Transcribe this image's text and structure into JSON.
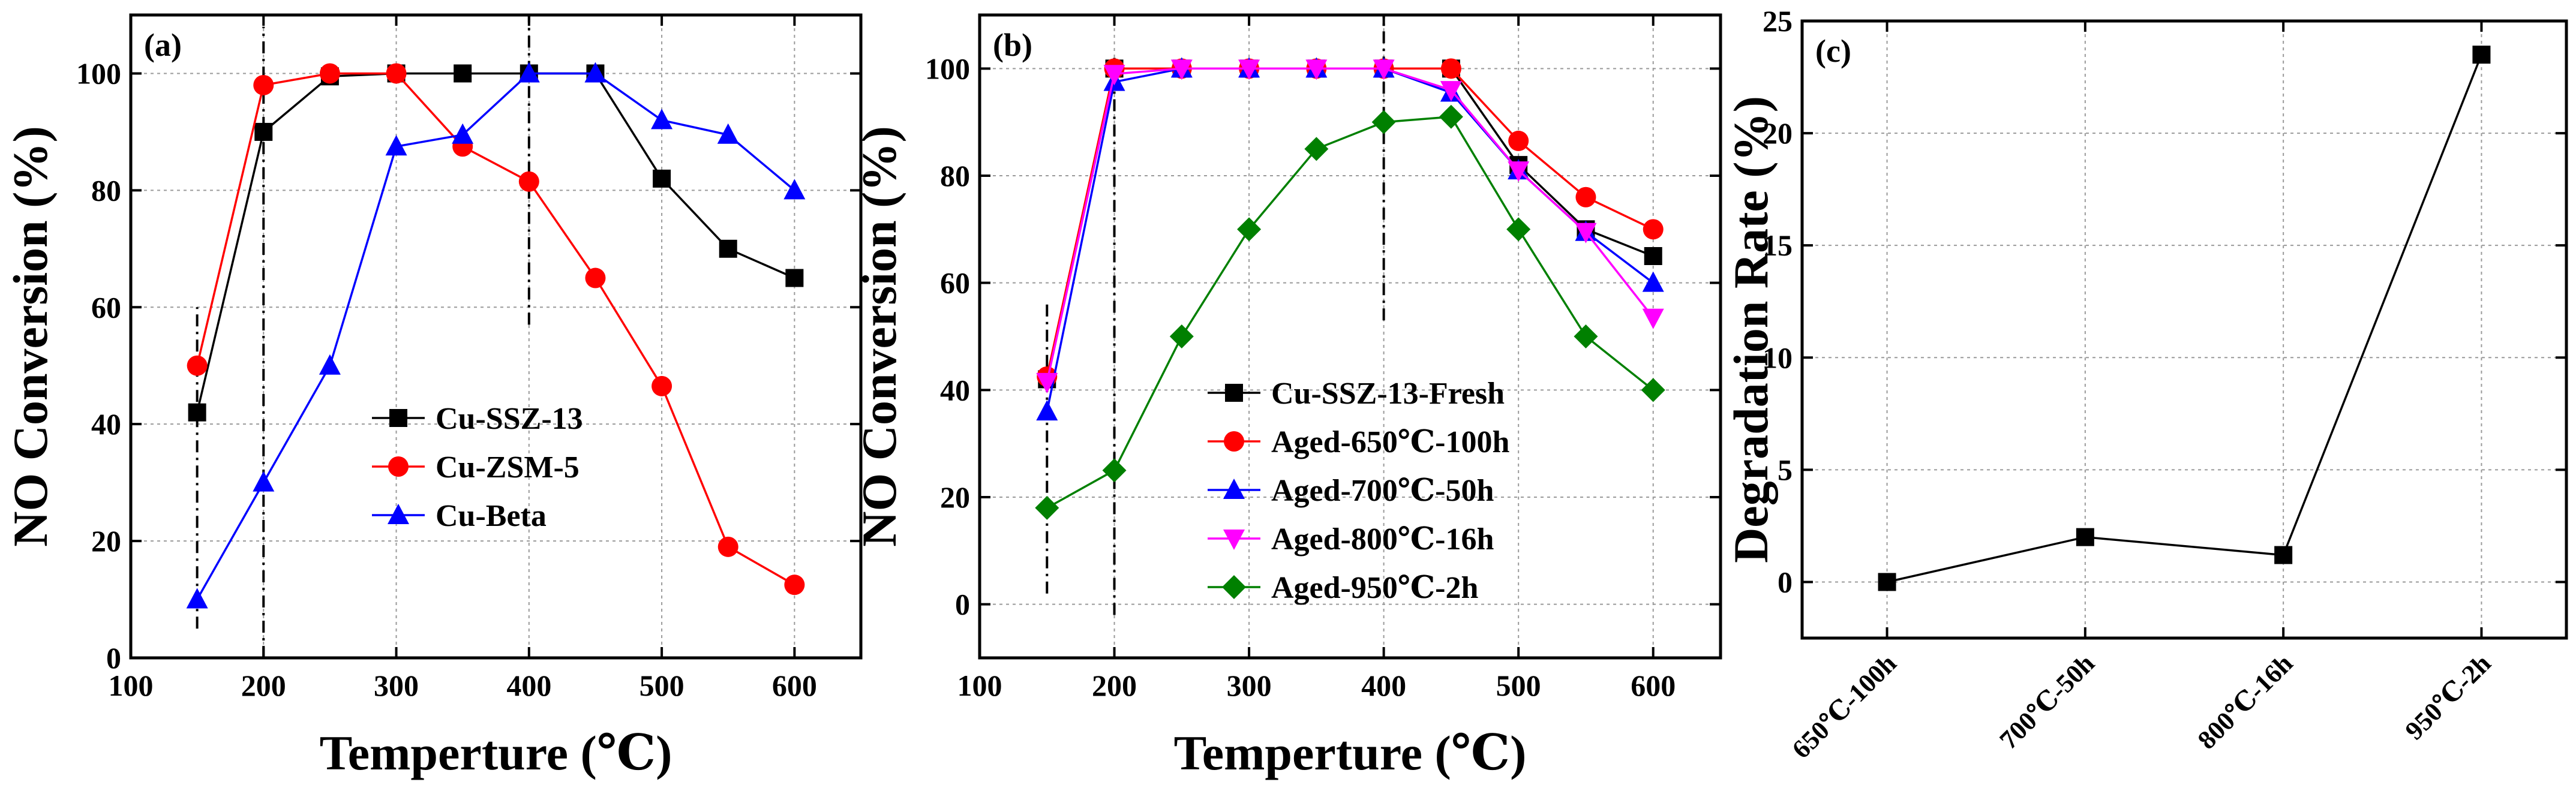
{
  "chart_data": [
    {
      "type": "line",
      "panel_label": "(a)",
      "xlabel": "Temperture (℃)",
      "ylabel": "NO Conversion (%)",
      "xlim": [
        100,
        650
      ],
      "ylim": [
        0,
        110
      ],
      "xticks": [
        100,
        200,
        300,
        400,
        500,
        600
      ],
      "yticks": [
        0,
        20,
        40,
        60,
        80,
        100
      ],
      "grid": true,
      "legend_position": "center",
      "vlines": [
        {
          "x": 150,
          "y_from": 5,
          "y_to": 60
        },
        {
          "x": 200,
          "y_from": 0,
          "y_to": 108
        },
        {
          "x": 400,
          "y_from": 57,
          "y_to": 110
        }
      ],
      "series": [
        {
          "name": "Cu-SSZ-13",
          "color": "#000000",
          "marker": "square",
          "x": [
            150,
            200,
            250,
            300,
            350,
            400,
            450,
            500,
            550,
            600
          ],
          "y": [
            42,
            90,
            99.5,
            100,
            100,
            100,
            100,
            82,
            70,
            65
          ]
        },
        {
          "name": "Cu-ZSM-5",
          "color": "#ff0000",
          "marker": "circle",
          "x": [
            150,
            200,
            250,
            300,
            350,
            400,
            450,
            500,
            550,
            600
          ],
          "y": [
            50,
            98,
            100,
            100,
            87.5,
            81.5,
            65,
            46.5,
            19,
            12.5
          ]
        },
        {
          "name": "Cu-Beta",
          "color": "#0000ff",
          "marker": "triangle-up",
          "x": [
            150,
            200,
            250,
            300,
            350,
            400,
            450,
            500,
            550,
            600
          ],
          "y": [
            10,
            30,
            50,
            87.5,
            89.5,
            100,
            100,
            92,
            89.5,
            80
          ]
        }
      ]
    },
    {
      "type": "line",
      "panel_label": "(b)",
      "xlabel": "Temperture (℃)",
      "ylabel": "NO Conversion (%)",
      "xlim": [
        100,
        650
      ],
      "ylim": [
        -10,
        110
      ],
      "xticks": [
        100,
        200,
        300,
        400,
        500,
        600
      ],
      "yticks": [
        0,
        20,
        40,
        60,
        80,
        100
      ],
      "grid": true,
      "legend_position": "lower-center",
      "vlines": [
        {
          "x": 150,
          "y_from": 2,
          "y_to": 56
        },
        {
          "x": 200,
          "y_from": -2,
          "y_to": 102
        },
        {
          "x": 400,
          "y_from": 53,
          "y_to": 110
        }
      ],
      "series": [
        {
          "name": "Cu-SSZ-13-Fresh",
          "color": "#000000",
          "marker": "square",
          "x": [
            150,
            200,
            250,
            300,
            350,
            400,
            450,
            500,
            550,
            600
          ],
          "y": [
            42,
            100,
            100,
            100,
            100,
            100,
            100,
            82,
            70,
            65
          ]
        },
        {
          "name": "Aged-650℃-100h",
          "color": "#ff0000",
          "marker": "circle",
          "x": [
            150,
            200,
            250,
            300,
            350,
            400,
            450,
            500,
            550,
            600
          ],
          "y": [
            42.5,
            100,
            100,
            100,
            100,
            100,
            100,
            86.5,
            76,
            70
          ]
        },
        {
          "name": "Aged-700℃-50h",
          "color": "#0000ff",
          "marker": "triangle-up",
          "x": [
            150,
            200,
            250,
            300,
            350,
            400,
            450,
            500,
            550,
            600
          ],
          "y": [
            36,
            97.5,
            100,
            100,
            100,
            100,
            95.5,
            81,
            69.5,
            60
          ]
        },
        {
          "name": "Aged-800℃-16h",
          "color": "#ff00ff",
          "marker": "triangle-down",
          "x": [
            150,
            200,
            250,
            300,
            350,
            400,
            450,
            500,
            550,
            600
          ],
          "y": [
            41.5,
            99,
            100,
            100,
            100,
            100,
            96,
            81,
            69.5,
            53.5
          ]
        },
        {
          "name": "Aged-950℃-2h",
          "color": "#008000",
          "marker": "diamond",
          "x": [
            150,
            200,
            250,
            300,
            350,
            400,
            450,
            500,
            550,
            600
          ],
          "y": [
            18,
            25,
            50,
            70,
            85,
            90,
            91,
            70,
            50,
            40
          ]
        }
      ]
    },
    {
      "type": "line",
      "panel_label": "(c)",
      "xlabel": "",
      "ylabel": "Degradation Rate (%)",
      "ylim": [
        -2.5,
        25
      ],
      "yticks": [
        0,
        5,
        10,
        15,
        20,
        25
      ],
      "grid": true,
      "categories": [
        "650℃-100h",
        "700℃-50h",
        "800℃-16h",
        "950℃-2h"
      ],
      "series": [
        {
          "name": "Degradation Rate",
          "color": "#000000",
          "marker": "square",
          "values": [
            0,
            2,
            1.2,
            23.5
          ]
        }
      ]
    }
  ]
}
